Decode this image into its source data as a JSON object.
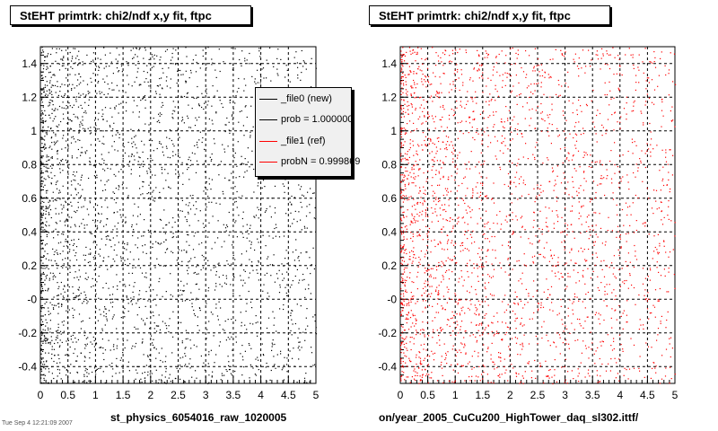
{
  "chart_data": [
    {
      "type": "scatter",
      "title": "StEHT primtrk: chi2/ndf x,y fit, ftpc",
      "xlim": [
        0,
        5
      ],
      "ylim": [
        -0.5,
        1.5
      ],
      "x_ticks": [
        "0",
        "0.5",
        "1",
        "1.5",
        "2",
        "2.5",
        "3",
        "3.5",
        "4",
        "4.5",
        "5"
      ],
      "y_ticks": [
        "-0.4",
        "-0.2",
        "-0",
        "0.2",
        "0.4",
        "0.6",
        "0.8",
        "1",
        "1.2",
        "1.4"
      ],
      "grid": true,
      "marker_color": "#000000",
      "density_note": "points dense near x 0–1.5, sparser toward x 5",
      "legend": {
        "placement": "top-right",
        "entries": [
          {
            "label": "_file0 (new)",
            "color": "#000000"
          },
          {
            "label": "prob = 1.000000",
            "color": "#000000"
          },
          {
            "label": "_file1 (ref)",
            "color": "#ff0000"
          },
          {
            "label": "probN = 0.999869",
            "color": "#ff0000"
          }
        ]
      },
      "file_label": "st_physics_6054016_raw_1020005"
    },
    {
      "type": "scatter",
      "title": "StEHT primtrk: chi2/ndf x,y fit, ftpc",
      "xlim": [
        0,
        5
      ],
      "ylim": [
        -0.5,
        1.5
      ],
      "x_ticks": [
        "0",
        "0.5",
        "1",
        "1.5",
        "2",
        "2.5",
        "3",
        "3.5",
        "4",
        "4.5",
        "5"
      ],
      "y_ticks": [
        "-0.4",
        "-0.2",
        "-0",
        "0.2",
        "0.4",
        "0.6",
        "0.8",
        "1",
        "1.2",
        "1.4"
      ],
      "grid": true,
      "marker_color": "#ff0000",
      "density_note": "points dense near x 0–1.5, sparser toward x 5",
      "file_label": "on/year_2005_CuCu200_HighTower_daq_sl302.ittf/"
    }
  ],
  "corner_note": "Tue Sep 4 12:21:09 2007"
}
